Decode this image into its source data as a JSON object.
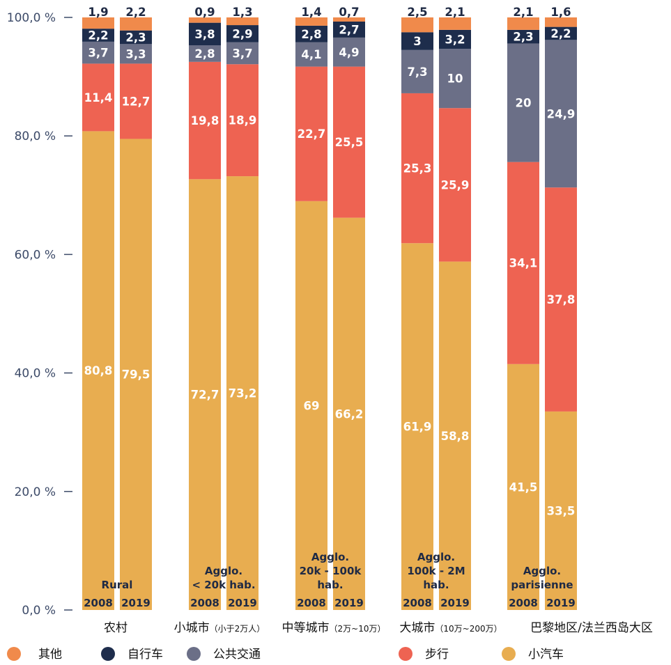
{
  "chart_data": {
    "type": "bar",
    "stacked": true,
    "ylim": [
      0,
      100
    ],
    "yticks": [
      "0,0 %",
      "20,0 %",
      "40,0 %",
      "60,0 %",
      "80,0 %",
      "100,0 %"
    ],
    "ytick_values": [
      0,
      20,
      40,
      60,
      80,
      100
    ],
    "series_order": [
      "car",
      "walk",
      "transit",
      "bike",
      "other"
    ],
    "series": {
      "car": {
        "name": "小汽车",
        "color": "#e8ad50"
      },
      "walk": {
        "name": "步行",
        "color": "#ee6352"
      },
      "transit": {
        "name": "公共交通",
        "color": "#6b6f87"
      },
      "bike": {
        "name": "自行车",
        "color": "#1e2d4c"
      },
      "other": {
        "name": "其他",
        "color": "#f08a4b"
      }
    },
    "groups": [
      {
        "label": "农村",
        "label_small": "",
        "inner_label": [
          "Rural"
        ],
        "bars": [
          {
            "year": "2008",
            "car": 80.8,
            "walk": 11.4,
            "transit": 3.7,
            "bike": 2.2,
            "other": 1.9,
            "labels": {
              "car": "80,8",
              "walk": "11,4",
              "transit": "3,7",
              "bike": "2,2",
              "other": "1,9"
            }
          },
          {
            "year": "2019",
            "car": 79.5,
            "walk": 12.7,
            "transit": 3.3,
            "bike": 2.3,
            "other": 2.2,
            "labels": {
              "car": "79,5",
              "walk": "12,7",
              "transit": "3,3",
              "bike": "2,3",
              "other": "2,2"
            }
          }
        ]
      },
      {
        "label": "小城市",
        "label_small": "（小于2万人）",
        "inner_label": [
          "Agglo.",
          "< 20k hab."
        ],
        "bars": [
          {
            "year": "2008",
            "car": 72.7,
            "walk": 19.8,
            "transit": 2.8,
            "bike": 3.8,
            "other": 0.9,
            "labels": {
              "car": "72,7",
              "walk": "19,8",
              "transit": "2,8",
              "bike": "3,8",
              "other": "0,9"
            }
          },
          {
            "year": "2019",
            "car": 73.2,
            "walk": 18.9,
            "transit": 3.7,
            "bike": 2.9,
            "other": 1.3,
            "labels": {
              "car": "73,2",
              "walk": "18,9",
              "transit": "3,7",
              "bike": "2,9",
              "other": "1,3"
            }
          }
        ]
      },
      {
        "label": "中等城市",
        "label_small": "（2万~10万）",
        "inner_label": [
          "Agglo.",
          "20k - 100k",
          "hab."
        ],
        "bars": [
          {
            "year": "2008",
            "car": 69,
            "walk": 22.7,
            "transit": 4.1,
            "bike": 2.8,
            "other": 1.4,
            "labels": {
              "car": "69",
              "walk": "22,7",
              "transit": "4,1",
              "bike": "2,8",
              "other": "1,4"
            }
          },
          {
            "year": "2019",
            "car": 66.2,
            "walk": 25.5,
            "transit": 4.9,
            "bike": 2.7,
            "other": 0.7,
            "labels": {
              "car": "66,2",
              "walk": "25,5",
              "transit": "4,9",
              "bike": "2,7",
              "other": "0,7"
            }
          }
        ]
      },
      {
        "label": "大城市",
        "label_small": "（10万~200万）",
        "inner_label": [
          "Agglo.",
          "100k - 2M",
          "hab."
        ],
        "bars": [
          {
            "year": "2008",
            "car": 61.9,
            "walk": 25.3,
            "transit": 7.3,
            "bike": 3,
            "other": 2.5,
            "labels": {
              "car": "61,9",
              "walk": "25,3",
              "transit": "7,3",
              "bike": "3",
              "other": "2,5"
            }
          },
          {
            "year": "2019",
            "car": 58.8,
            "walk": 25.9,
            "transit": 10,
            "bike": 3.2,
            "other": 2.1,
            "labels": {
              "car": "58,8",
              "walk": "25,9",
              "transit": "10",
              "bike": "3,2",
              "other": "2,1"
            }
          }
        ]
      },
      {
        "label": "巴黎地区/法兰西岛大区",
        "label_small": "",
        "inner_label": [
          "Agglo.",
          "parisienne"
        ],
        "bars": [
          {
            "year": "2008",
            "car": 41.5,
            "walk": 34.1,
            "transit": 20,
            "bike": 2.3,
            "other": 2.1,
            "labels": {
              "car": "41,5",
              "walk": "34,1",
              "transit": "20",
              "bike": "2,3",
              "other": "2,1"
            }
          },
          {
            "year": "2019",
            "car": 33.5,
            "walk": 37.8,
            "transit": 24.9,
            "bike": 2.2,
            "other": 1.6,
            "labels": {
              "car": "33,5",
              "walk": "37,8",
              "transit": "24,9",
              "bike": "2,2",
              "other": "1,6"
            }
          }
        ]
      }
    ],
    "legend": [
      {
        "key": "other",
        "label": "其他"
      },
      {
        "key": "bike",
        "label": "自行车"
      },
      {
        "key": "transit",
        "label": "公共交通"
      },
      {
        "key": "walk",
        "label": "步行"
      },
      {
        "key": "car",
        "label": "小汽车"
      }
    ]
  }
}
